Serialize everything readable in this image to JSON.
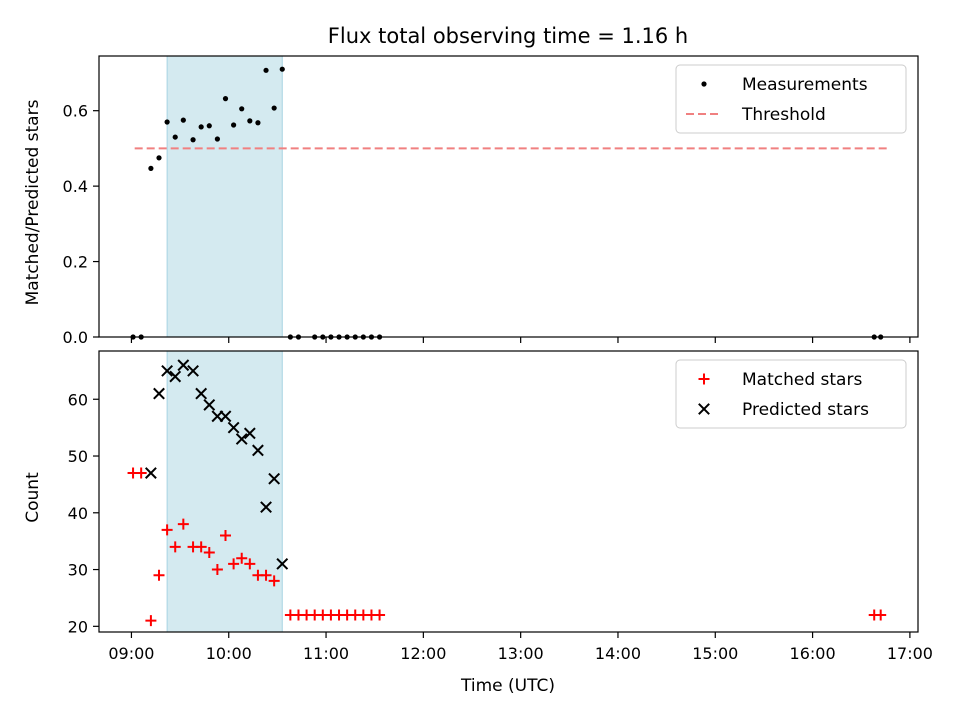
{
  "figure": {
    "title": "Flux total observing time = 1.16 h",
    "xlabel": "Time (UTC)"
  },
  "chart_data": [
    {
      "type": "scatter",
      "ylabel": "Matched/Predicted stars",
      "xlim": [
        "08:40",
        "17:05"
      ],
      "ylim": [
        0,
        0.745
      ],
      "yticks": [
        0.0,
        0.2,
        0.4,
        0.6
      ],
      "y_tick_labels": [
        "0.0",
        "0.2",
        "0.4",
        "0.6"
      ],
      "highlight_span": [
        "09:22",
        "10:33"
      ],
      "highlight_color": "#d4eaf0",
      "legend_position": "upper right",
      "series": [
        {
          "name": "Measurements",
          "marker": "dot",
          "color": "#000000",
          "points": [
            [
              "09:01",
              0.0
            ],
            [
              "09:06",
              0.0
            ],
            [
              "09:12",
              0.447
            ],
            [
              "09:17",
              0.475
            ],
            [
              "09:22",
              0.57
            ],
            [
              "09:27",
              0.53
            ],
            [
              "09:32",
              0.575
            ],
            [
              "09:38",
              0.523
            ],
            [
              "09:43",
              0.557
            ],
            [
              "09:48",
              0.56
            ],
            [
              "09:53",
              0.525
            ],
            [
              "09:58",
              0.632
            ],
            [
              "10:03",
              0.562
            ],
            [
              "10:08",
              0.605
            ],
            [
              "10:13",
              0.573
            ],
            [
              "10:18",
              0.568
            ],
            [
              "10:23",
              0.707
            ],
            [
              "10:28",
              0.607
            ],
            [
              "10:33",
              0.71
            ],
            [
              "10:38",
              0.0
            ],
            [
              "10:43",
              0.0
            ],
            [
              "10:53",
              0.0
            ],
            [
              "10:58",
              0.0
            ],
            [
              "11:03",
              0.0
            ],
            [
              "11:08",
              0.0
            ],
            [
              "11:13",
              0.0
            ],
            [
              "11:18",
              0.0
            ],
            [
              "11:23",
              0.0
            ],
            [
              "11:28",
              0.0
            ],
            [
              "11:33",
              0.0
            ],
            [
              "16:38",
              0.0
            ],
            [
              "16:42",
              0.0
            ]
          ]
        },
        {
          "name": "Threshold",
          "style": "dashed",
          "color": "#f08080",
          "x": [
            "09:02",
            "16:47"
          ],
          "y": [
            0.5,
            0.5
          ]
        }
      ]
    },
    {
      "type": "scatter",
      "ylabel": "Count",
      "xlim": [
        "08:40",
        "17:05"
      ],
      "ylim": [
        19,
        68.5
      ],
      "yticks": [
        20,
        30,
        40,
        50,
        60
      ],
      "y_tick_labels": [
        "20",
        "30",
        "40",
        "50",
        "60"
      ],
      "x_tick_labels": [
        "09:00",
        "10:00",
        "11:00",
        "12:00",
        "13:00",
        "14:00",
        "15:00",
        "16:00",
        "17:00"
      ],
      "highlight_span": [
        "09:22",
        "10:33"
      ],
      "highlight_color": "#d4eaf0",
      "legend_position": "upper right",
      "series": [
        {
          "name": "Matched stars",
          "marker": "plus",
          "color": "#ff0000",
          "points": [
            [
              "09:01",
              47
            ],
            [
              "09:06",
              47
            ],
            [
              "09:12",
              21
            ],
            [
              "09:17",
              29
            ],
            [
              "09:22",
              37
            ],
            [
              "09:27",
              34
            ],
            [
              "09:32",
              38
            ],
            [
              "09:38",
              34
            ],
            [
              "09:43",
              34
            ],
            [
              "09:48",
              33
            ],
            [
              "09:53",
              30
            ],
            [
              "09:58",
              36
            ],
            [
              "10:03",
              31
            ],
            [
              "10:08",
              32
            ],
            [
              "10:13",
              31
            ],
            [
              "10:18",
              29
            ],
            [
              "10:23",
              29
            ],
            [
              "10:28",
              28
            ],
            [
              "10:38",
              22
            ],
            [
              "10:43",
              22
            ],
            [
              "10:48",
              22
            ],
            [
              "10:53",
              22
            ],
            [
              "10:58",
              22
            ],
            [
              "11:03",
              22
            ],
            [
              "11:08",
              22
            ],
            [
              "11:13",
              22
            ],
            [
              "11:18",
              22
            ],
            [
              "11:23",
              22
            ],
            [
              "11:28",
              22
            ],
            [
              "11:33",
              22
            ],
            [
              "16:38",
              22
            ],
            [
              "16:42",
              22
            ]
          ]
        },
        {
          "name": "Predicted stars",
          "marker": "x",
          "color": "#000000",
          "points": [
            [
              "09:12",
              47
            ],
            [
              "09:17",
              61
            ],
            [
              "09:22",
              65
            ],
            [
              "09:27",
              64
            ],
            [
              "09:32",
              66
            ],
            [
              "09:38",
              65
            ],
            [
              "09:43",
              61
            ],
            [
              "09:48",
              59
            ],
            [
              "09:53",
              57
            ],
            [
              "09:58",
              57
            ],
            [
              "10:03",
              55
            ],
            [
              "10:08",
              53
            ],
            [
              "10:13",
              54
            ],
            [
              "10:18",
              51
            ],
            [
              "10:23",
              41
            ],
            [
              "10:28",
              46
            ],
            [
              "10:33",
              31
            ]
          ]
        }
      ]
    }
  ]
}
